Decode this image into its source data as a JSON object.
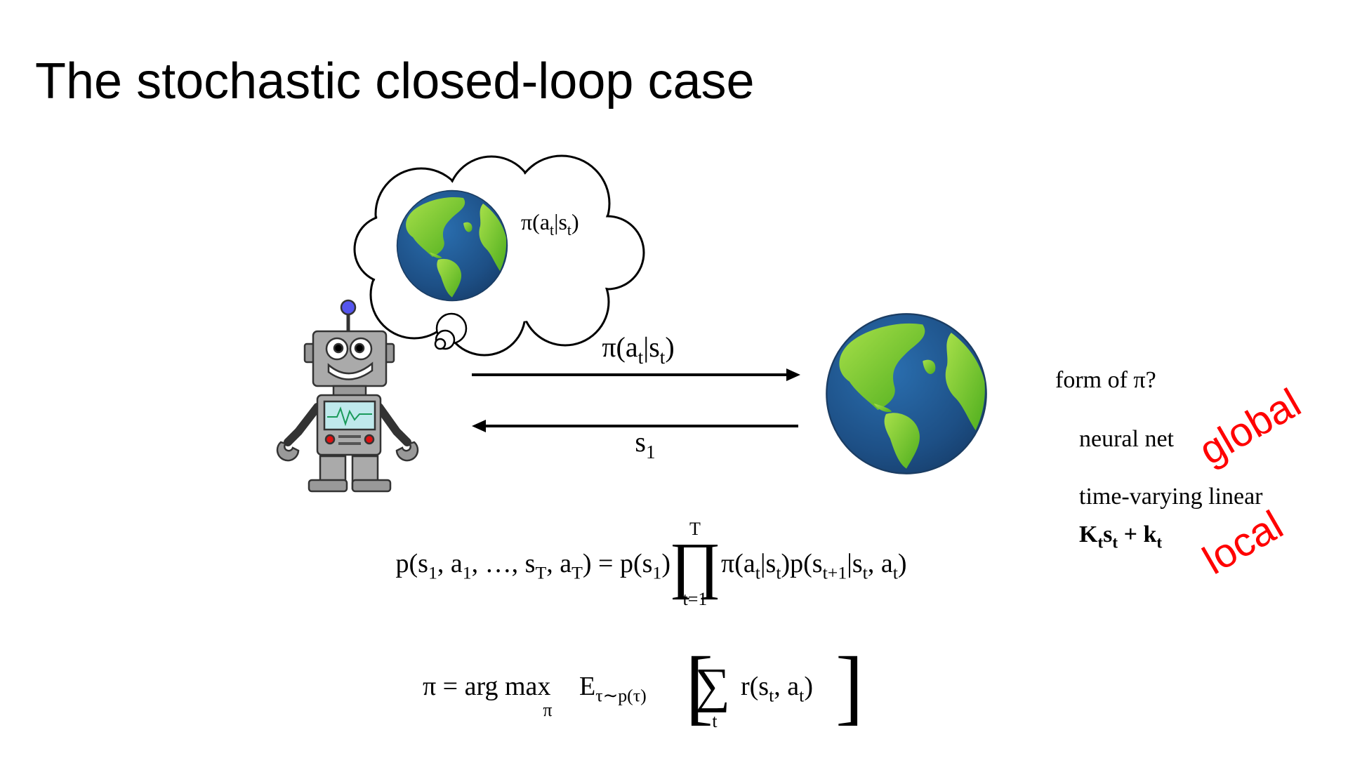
{
  "title": "The stochastic closed-loop case",
  "thought_bubble": {
    "policy": [
      "π(a",
      "t",
      "|s",
      "t",
      ")"
    ]
  },
  "arrows": {
    "action_label": [
      "π(a",
      "t",
      "|s",
      "t",
      ")"
    ],
    "state_label": [
      "s",
      "1"
    ]
  },
  "policy_form": {
    "question": "form of π?",
    "option_1": "neural net",
    "option_1_tag": "global",
    "option_2": "time-varying linear",
    "option_2_formula": [
      "K",
      "t",
      "s",
      "t",
      " + k",
      "t"
    ],
    "option_2_tag": "local"
  },
  "equations": {
    "trajectory": {
      "left": [
        "p(s",
        "1",
        ", a",
        "1",
        ", …, s",
        "T",
        ", a",
        "T",
        ") = p(s",
        "1",
        ")"
      ],
      "product": "∏",
      "product_upper": "T",
      "product_lower": "t=1",
      "right": [
        "π(a",
        "t",
        "|s",
        "t",
        ")p(s",
        "t+1",
        "|s",
        "t",
        ", a",
        "t",
        ")"
      ]
    },
    "objective": {
      "left": "π = arg max",
      "max_under": "π",
      "expectation": [
        "E",
        "τ∼p(τ)"
      ],
      "open_bracket": "[",
      "sum": "∑",
      "sum_under": "t",
      "summand": [
        "r(s",
        "t",
        ", a",
        "t",
        ")"
      ],
      "close_bracket": "]"
    }
  }
}
